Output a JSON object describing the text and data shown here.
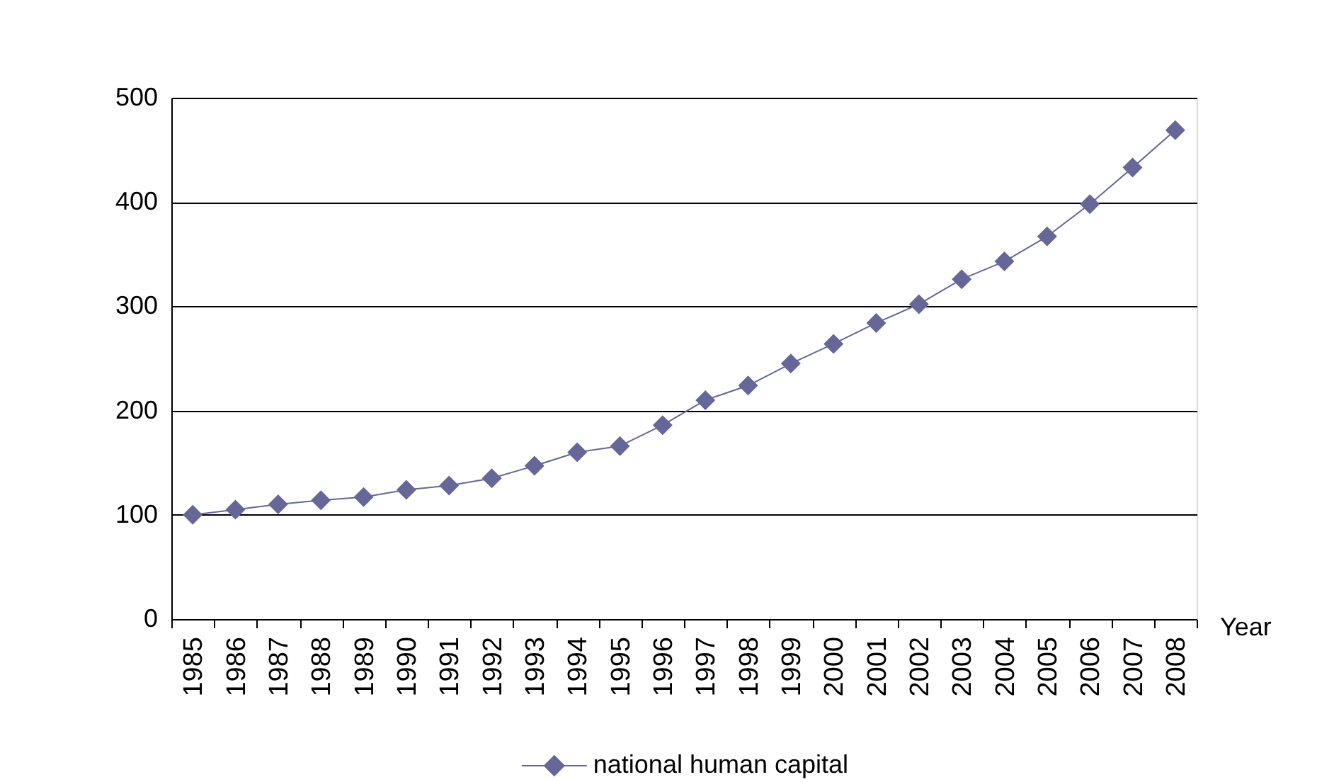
{
  "chart_data": {
    "type": "line",
    "xlabel": "Year",
    "categories": [
      "1985",
      "1986",
      "1987",
      "1988",
      "1989",
      "1990",
      "1991",
      "1992",
      "1993",
      "1994",
      "1995",
      "1996",
      "1997",
      "1998",
      "1999",
      "2000",
      "2001",
      "2002",
      "2003",
      "2004",
      "2005",
      "2006",
      "2007",
      "2008"
    ],
    "series": [
      {
        "name": "national human capital",
        "color": "#666699",
        "values": [
          100,
          105,
          110,
          114,
          117,
          124,
          128,
          135,
          147,
          160,
          166,
          186,
          210,
          224,
          245,
          264,
          284,
          302,
          326,
          343,
          367,
          398,
          433,
          469
        ]
      }
    ],
    "ylim": [
      0,
      500
    ],
    "yticks": [
      0,
      100,
      200,
      300,
      400,
      500
    ],
    "grid": "y",
    "legend": "bottom",
    "marker": "diamond",
    "line_style": "solid"
  }
}
